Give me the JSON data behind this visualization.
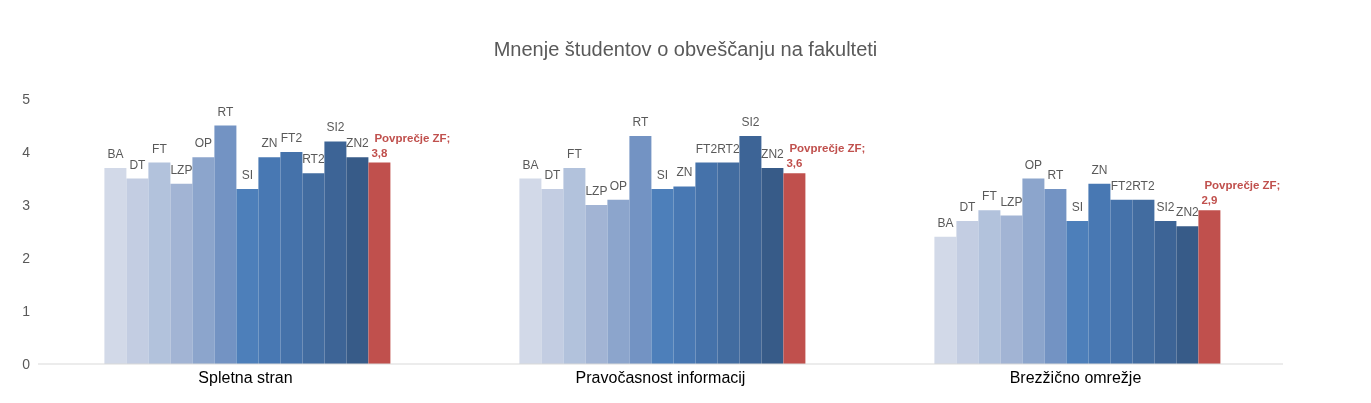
{
  "chart_data": {
    "type": "bar",
    "title": "Mnenje študentov o obveščanju na fakulteti",
    "categories": [
      "Spletna stran",
      "Pravočasnost informacij",
      "Brezžično omrežje"
    ],
    "ylim": [
      0,
      5
    ],
    "yticks": [
      0,
      1,
      2,
      3,
      4,
      5
    ],
    "series": [
      {
        "name": "BA",
        "color": "#d2d9e8",
        "values": [
          3.7,
          3.5,
          2.4
        ]
      },
      {
        "name": "DT",
        "color": "#c3cde2",
        "values": [
          3.5,
          3.3,
          2.7
        ]
      },
      {
        "name": "FT",
        "color": "#b2c2dc",
        "values": [
          3.8,
          3.7,
          2.9
        ]
      },
      {
        "name": "LZP",
        "color": "#a2b4d4",
        "values": [
          3.4,
          3.0,
          2.8
        ]
      },
      {
        "name": "OP",
        "color": "#8ca5cc",
        "values": [
          3.9,
          3.1,
          3.5
        ]
      },
      {
        "name": "RT",
        "color": "#7393c3",
        "values": [
          4.5,
          4.3,
          3.3
        ]
      },
      {
        "name": "SI",
        "color": "#4d7fba",
        "values": [
          3.3,
          3.3,
          2.7
        ]
      },
      {
        "name": "ZN",
        "color": "#4878b3",
        "values": [
          3.9,
          3.35,
          3.4
        ]
      },
      {
        "name": "FT2",
        "color": "#4572aa",
        "values": [
          4.0,
          3.8,
          3.1
        ]
      },
      {
        "name": "RT2",
        "color": "#426ca0",
        "values": [
          3.6,
          3.8,
          3.1
        ]
      },
      {
        "name": "SI2",
        "color": "#3d6496",
        "values": [
          4.2,
          4.3,
          2.7
        ]
      },
      {
        "name": "ZN2",
        "color": "#375b88",
        "values": [
          3.9,
          3.7,
          2.6
        ]
      },
      {
        "name": "Povprečje ZF;",
        "color": "#c0504d",
        "values": [
          3.8,
          3.6,
          2.9
        ],
        "value_labels": [
          "3,8",
          "3,6",
          "2,9"
        ]
      }
    ]
  }
}
